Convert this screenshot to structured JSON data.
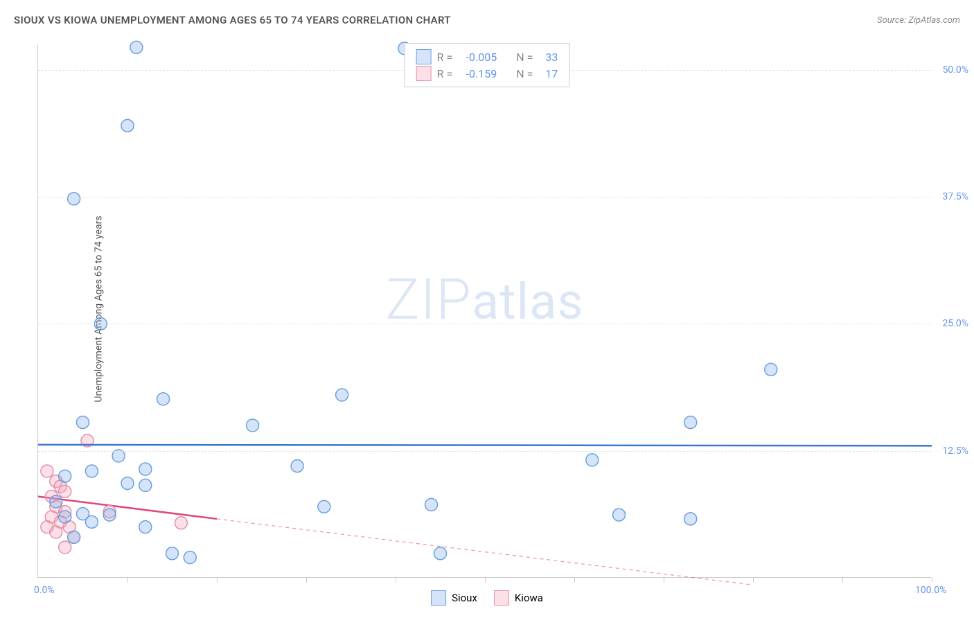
{
  "title": "SIOUX VS KIOWA UNEMPLOYMENT AMONG AGES 65 TO 74 YEARS CORRELATION CHART",
  "source": "Source: ZipAtlas.com",
  "y_axis_label": "Unemployment Among Ages 65 to 74 years",
  "watermark": {
    "big": "ZIP",
    "small": "atlas"
  },
  "chart": {
    "type": "scatter",
    "xlim": [
      0,
      100
    ],
    "ylim": [
      0,
      52.5
    ],
    "x_tick_labels": [
      {
        "value": 0,
        "label": "0.0%"
      },
      {
        "value": 100,
        "label": "100.0%"
      }
    ],
    "x_ticks_minor": [
      10,
      20,
      30,
      40,
      50,
      60,
      70,
      80,
      90,
      100
    ],
    "y_tick_labels": [
      {
        "value": 12.5,
        "label": "12.5%"
      },
      {
        "value": 25.0,
        "label": "25.0%"
      },
      {
        "value": 37.5,
        "label": "37.5%"
      },
      {
        "value": 50.0,
        "label": "50.0%"
      }
    ],
    "gridlines_y": [
      12.5,
      25.0,
      37.5,
      50.0
    ],
    "background_color": "#ffffff",
    "grid_color": "#e0e0e0",
    "marker_radius": 9,
    "marker_stroke_width": 1.5,
    "line_width": 2.5,
    "series": {
      "sioux": {
        "label": "Sioux",
        "fill": "rgba(135,178,235,0.35)",
        "stroke": "#6aa1de",
        "line_color": "#3b77d1",
        "r_label": "R =",
        "r_value": "-0.005",
        "n_label": "N =",
        "n_value": "33",
        "regression": {
          "x1": 0,
          "y1": 13.1,
          "x2": 100,
          "y2": 13.0
        },
        "dash_extension": null,
        "points": [
          [
            4,
            37.3
          ],
          [
            11,
            52.2
          ],
          [
            10,
            44.5
          ],
          [
            7,
            25.0
          ],
          [
            5,
            15.3
          ],
          [
            9,
            12.0
          ],
          [
            12,
            10.7
          ],
          [
            12,
            9.1
          ],
          [
            14,
            17.6
          ],
          [
            24,
            15.0
          ],
          [
            29,
            11.0
          ],
          [
            32,
            7.0
          ],
          [
            34,
            18.0
          ],
          [
            44,
            7.2
          ],
          [
            41,
            52.1
          ],
          [
            45,
            2.4
          ],
          [
            62,
            11.6
          ],
          [
            65,
            6.2
          ],
          [
            73,
            15.3
          ],
          [
            73,
            5.8
          ],
          [
            82,
            20.5
          ],
          [
            15,
            2.4
          ],
          [
            17,
            2.0
          ],
          [
            2,
            7.5
          ],
          [
            3,
            6.0
          ],
          [
            5,
            6.3
          ],
          [
            6,
            5.5
          ],
          [
            8,
            6.2
          ],
          [
            10,
            9.3
          ],
          [
            12,
            5.0
          ],
          [
            4,
            4.0
          ],
          [
            3,
            10.0
          ],
          [
            6,
            10.5
          ]
        ]
      },
      "kiowa": {
        "label": "Kiowa",
        "fill": "rgba(244,166,188,0.35)",
        "stroke": "#e58fa9",
        "line_color": "#e0457c",
        "r_label": "R =",
        "r_value": "-0.159",
        "n_label": "N =",
        "n_value": "17",
        "regression": {
          "x1": 0,
          "y1": 8.0,
          "x2": 20,
          "y2": 5.8
        },
        "dash_extension": {
          "x1": 20,
          "y1": 5.8,
          "x2": 80,
          "y2": -0.7
        },
        "points": [
          [
            1,
            10.5
          ],
          [
            2,
            9.5
          ],
          [
            2.5,
            9.0
          ],
          [
            3,
            8.5
          ],
          [
            1.5,
            8.0
          ],
          [
            2,
            7.0
          ],
          [
            3,
            6.5
          ],
          [
            1.5,
            6.0
          ],
          [
            2.5,
            5.5
          ],
          [
            3.5,
            5.0
          ],
          [
            2,
            4.5
          ],
          [
            4,
            4.0
          ],
          [
            5.5,
            13.5
          ],
          [
            8,
            6.5
          ],
          [
            16,
            5.4
          ],
          [
            3,
            3.0
          ],
          [
            1,
            5.0
          ]
        ]
      }
    }
  },
  "colors": {
    "tick_label": "#6495ED",
    "watermark": "#c8d6ef",
    "legend_gray": "#888"
  }
}
